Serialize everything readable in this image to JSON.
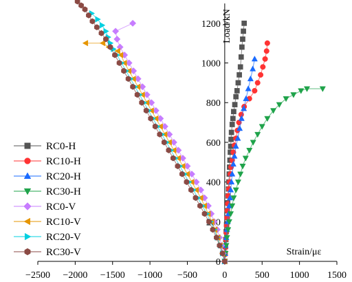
{
  "chart_data": {
    "type": "scatter",
    "xlabel": "Strain/με",
    "ylabel": "Load/kN",
    "xlim": [
      -2500,
      1500
    ],
    "ylim": [
      0,
      1300
    ],
    "x_ticks": [
      -2500,
      -2000,
      -1500,
      -1000,
      -500,
      0,
      500,
      1000,
      1500
    ],
    "y_ticks": [
      0,
      200,
      400,
      600,
      800,
      1000,
      1200
    ],
    "grid": false,
    "legend_position": "left",
    "series": [
      {
        "name": "RC0-H",
        "color": "#555555",
        "marker": "square",
        "x": [
          0,
          5,
          10,
          15,
          20,
          25,
          30,
          35,
          40,
          45,
          50,
          55,
          60,
          65,
          70,
          75,
          80,
          85,
          90,
          100,
          110,
          120,
          135,
          150,
          165,
          180,
          195,
          210,
          220,
          230,
          240,
          250,
          260
        ],
        "y": [
          0,
          40,
          75,
          110,
          150,
          185,
          220,
          255,
          295,
          330,
          365,
          400,
          440,
          475,
          510,
          550,
          580,
          615,
          650,
          690,
          720,
          755,
          790,
          830,
          860,
          900,
          940,
          980,
          1030,
          1080,
          1120,
          1160,
          1200
        ]
      },
      {
        "name": "RC10-H",
        "color": "#ff3333",
        "marker": "circle",
        "x": [
          0,
          5,
          10,
          15,
          20,
          25,
          30,
          35,
          40,
          45,
          55,
          65,
          75,
          85,
          100,
          115,
          130,
          150,
          170,
          190,
          220,
          260,
          330,
          400,
          440,
          480,
          510,
          540,
          560,
          570
        ],
        "y": [
          0,
          35,
          70,
          110,
          145,
          180,
          220,
          255,
          290,
          330,
          365,
          400,
          440,
          475,
          510,
          550,
          585,
          620,
          660,
          700,
          740,
          780,
          820,
          860,
          900,
          940,
          980,
          1020,
          1060,
          1100
        ]
      },
      {
        "name": "RC20-H",
        "color": "#1a6bff",
        "marker": "triangle-up",
        "x": [
          0,
          5,
          10,
          20,
          30,
          40,
          50,
          60,
          70,
          80,
          90,
          100,
          115,
          130,
          150,
          175,
          200,
          225,
          255,
          285,
          315,
          345,
          375,
          400
        ],
        "y": [
          0,
          40,
          80,
          120,
          160,
          200,
          240,
          280,
          320,
          360,
          400,
          440,
          490,
          530,
          580,
          620,
          670,
          720,
          770,
          820,
          870,
          920,
          970,
          1020
        ]
      },
      {
        "name": "RC30-H",
        "color": "#1fa34a",
        "marker": "triangle-down",
        "x": [
          0,
          10,
          20,
          30,
          45,
          60,
          80,
          100,
          120,
          150,
          180,
          210,
          240,
          280,
          330,
          380,
          440,
          500,
          570,
          650,
          730,
          820,
          920,
          1020,
          1100,
          1310
        ],
        "y": [
          0,
          40,
          80,
          120,
          160,
          200,
          240,
          280,
          320,
          360,
          400,
          440,
          480,
          520,
          560,
          600,
          640,
          680,
          720,
          760,
          790,
          820,
          840,
          860,
          870,
          870
        ]
      },
      {
        "name": "RC0-V",
        "color": "#c77dff",
        "marker": "diamond",
        "x": [
          0,
          -20,
          -40,
          -70,
          -100,
          -140,
          -180,
          -220,
          -270,
          -320,
          -380,
          -440,
          -500,
          -560,
          -620,
          -680,
          -740,
          -800,
          -860,
          -920,
          -980,
          -1040,
          -1100,
          -1160,
          -1220,
          -1280,
          -1340,
          -1400,
          -1440,
          -1460,
          -1230
        ],
        "y": [
          0,
          40,
          80,
          120,
          160,
          200,
          240,
          280,
          320,
          360,
          400,
          440,
          480,
          520,
          560,
          600,
          640,
          680,
          720,
          760,
          800,
          840,
          880,
          920,
          960,
          1000,
          1040,
          1080,
          1120,
          1160,
          1200
        ]
      },
      {
        "name": "RC10-V",
        "color": "#e69500",
        "marker": "triangle-left",
        "x": [
          0,
          -30,
          -60,
          -90,
          -130,
          -170,
          -220,
          -270,
          -320,
          -380,
          -440,
          -500,
          -560,
          -620,
          -680,
          -740,
          -800,
          -860,
          -920,
          -980,
          -1040,
          -1100,
          -1160,
          -1220,
          -1280,
          -1340,
          -1390,
          -1430,
          -1550,
          -1630,
          -1860
        ],
        "y": [
          0,
          40,
          80,
          120,
          160,
          200,
          240,
          280,
          320,
          360,
          400,
          440,
          480,
          520,
          560,
          600,
          640,
          680,
          720,
          760,
          800,
          840,
          880,
          920,
          960,
          1000,
          1040,
          1060,
          1080,
          1100,
          1100
        ]
      },
      {
        "name": "RC20-V",
        "color": "#00d0e0",
        "marker": "triangle-right",
        "x": [
          0,
          -30,
          -60,
          -100,
          -140,
          -190,
          -240,
          -300,
          -360,
          -420,
          -480,
          -540,
          -600,
          -660,
          -720,
          -780,
          -840,
          -900,
          -960,
          -1020,
          -1080,
          -1140,
          -1200,
          -1260,
          -1320,
          -1380,
          -1440,
          -1490,
          -1530,
          -1560,
          -1590,
          -1640,
          -1700,
          -1780
        ],
        "y": [
          0,
          40,
          80,
          120,
          160,
          200,
          240,
          280,
          320,
          360,
          400,
          440,
          480,
          520,
          560,
          600,
          640,
          680,
          720,
          760,
          800,
          840,
          880,
          920,
          960,
          1000,
          1040,
          1070,
          1100,
          1130,
          1160,
          1190,
          1220,
          1250
        ]
      },
      {
        "name": "RC30-V",
        "color": "#8b4a44",
        "marker": "hexagon",
        "x": [
          0,
          -30,
          -70,
          -110,
          -160,
          -210,
          -270,
          -330,
          -390,
          -450,
          -510,
          -570,
          -630,
          -690,
          -750,
          -810,
          -870,
          -930,
          -990,
          -1050,
          -1110,
          -1170,
          -1230,
          -1290,
          -1350,
          -1410,
          -1470,
          -1530,
          -1590,
          -1650,
          -1710,
          -1770,
          -1820,
          -1870,
          -1920,
          -1970
        ],
        "y": [
          0,
          40,
          80,
          120,
          160,
          200,
          240,
          280,
          320,
          360,
          400,
          440,
          480,
          520,
          560,
          600,
          640,
          680,
          720,
          760,
          800,
          840,
          880,
          920,
          960,
          1000,
          1040,
          1080,
          1120,
          1150,
          1180,
          1210,
          1240,
          1270,
          1290,
          1310
        ]
      }
    ]
  }
}
